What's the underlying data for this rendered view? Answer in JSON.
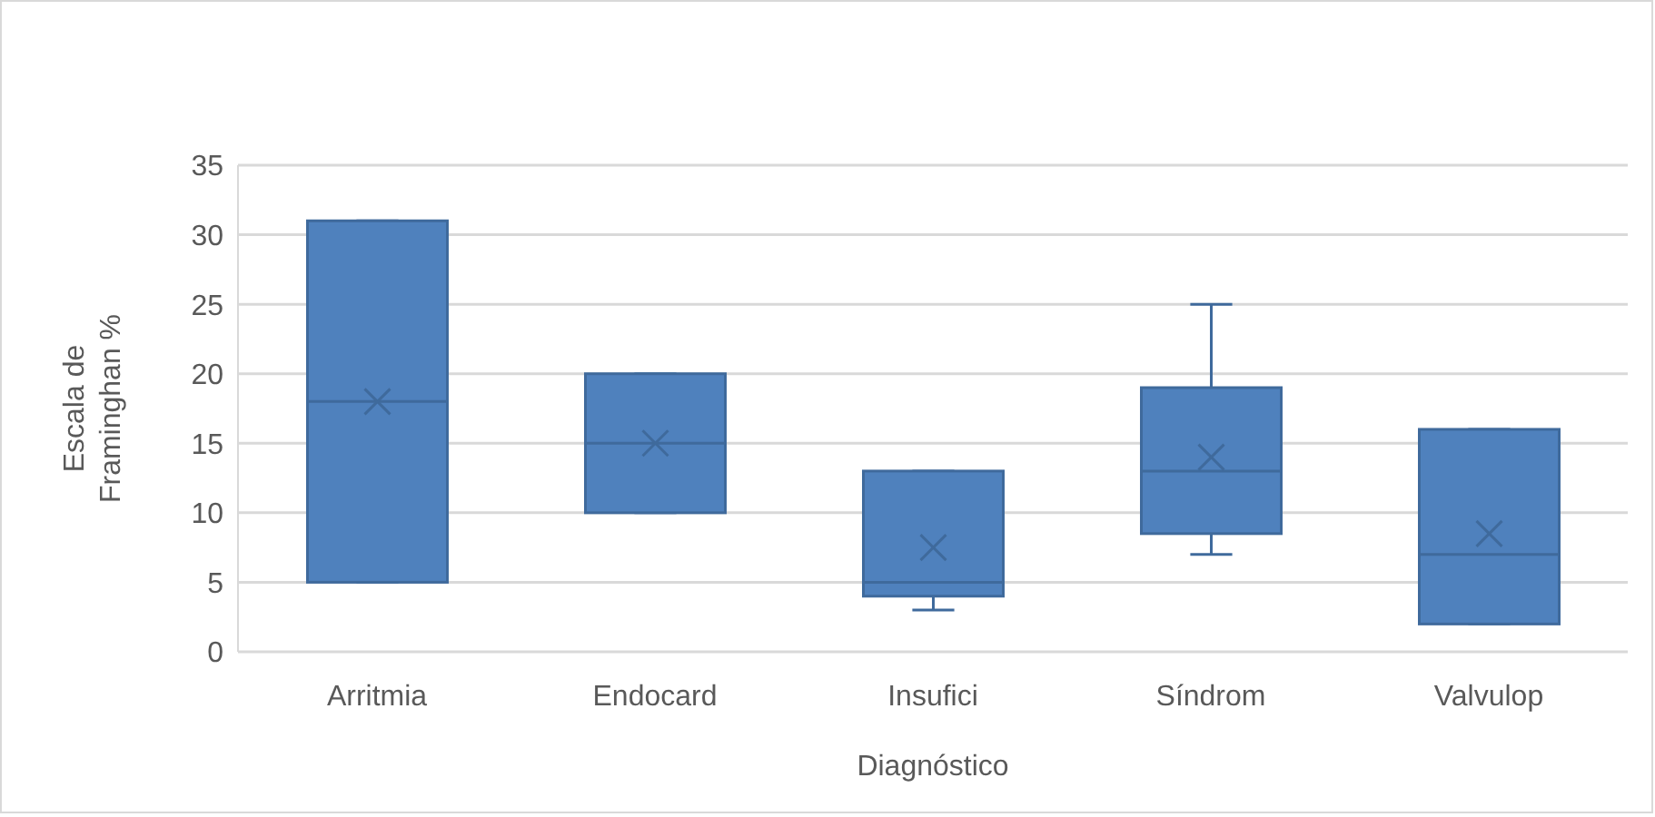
{
  "chart_data": {
    "type": "box",
    "categories": [
      "Arritmia",
      "Endocard",
      "Insufici",
      "Síndrom",
      "Valvulop"
    ],
    "color": "#4f81bd",
    "boxes": [
      {
        "low": 5,
        "q1": 5,
        "median": 18,
        "q3": 31,
        "high": 31,
        "mean": 18
      },
      {
        "low": 10,
        "q1": 10,
        "median": 15,
        "q3": 20,
        "high": 20,
        "mean": 15
      },
      {
        "low": 3,
        "q1": 4,
        "median": 5,
        "q3": 13,
        "high": 13,
        "mean": 7.5
      },
      {
        "low": 7,
        "q1": 8.5,
        "median": 13,
        "q3": 19,
        "high": 25,
        "mean": 14
      },
      {
        "low": 2,
        "q1": 2,
        "median": 7,
        "q3": 16,
        "high": 16,
        "mean": 8.5
      }
    ],
    "ylim": [
      0,
      35
    ],
    "yticks": [
      0,
      5,
      10,
      15,
      20,
      25,
      30,
      35
    ],
    "grid": "y",
    "xlabel": "Diagnóstico",
    "ylabel": "Escala de Framinghan %"
  }
}
